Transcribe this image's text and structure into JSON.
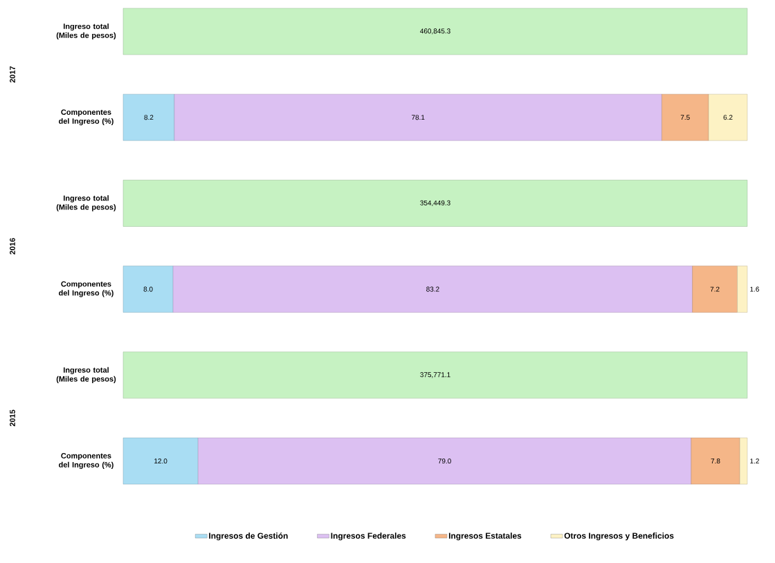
{
  "chart_data": {
    "type": "bar",
    "orientation": "horizontal",
    "stacked": true,
    "categories": [
      "Ingreso total (Miles de pesos)",
      "Componentes del Ingreso (%)",
      "Ingreso total (Miles de pesos)",
      "Componentes del Ingreso (%)",
      "Ingreso total (Miles de pesos)",
      "Componentes del Ingreso (%)"
    ],
    "xlim": [
      0,
      100
    ],
    "tick_labels": "y",
    "legend": "bottom",
    "annotations": [
      "2017",
      "460,845.3",
      "2016",
      "354,449.3",
      "2015",
      "375,771.1"
    ],
    "series": [
      {
        "color": "#c6f2c2",
        "values": [
          100,
          null,
          100,
          null,
          100,
          null
        ]
      },
      {
        "name": "Ingresos de Gestión",
        "color": "#a9ddf3",
        "values": [
          null,
          8.2,
          null,
          8.0,
          null,
          12.0
        ],
        "value_labels": [
          null,
          "8.2",
          null,
          "8.0",
          null,
          "12.0"
        ]
      },
      {
        "name": "Ingresos Federales",
        "color": "#dcc0f2",
        "values": [
          null,
          78.1,
          null,
          83.2,
          null,
          79.0
        ],
        "value_labels": [
          null,
          "78.1",
          null,
          "83.2",
          null,
          "79.0"
        ]
      },
      {
        "name": "Ingresos Estatales",
        "color": "#f5b688",
        "values": [
          null,
          7.5,
          null,
          7.2,
          null,
          7.8
        ],
        "value_labels": [
          null,
          "7.5",
          null,
          "7.2",
          null,
          "7.8"
        ]
      },
      {
        "name": "Otros Ingresos y Beneficios",
        "color": "#fdf2c4",
        "values": [
          null,
          6.2,
          null,
          1.6,
          null,
          1.2
        ],
        "value_labels": [
          null,
          "6.2",
          null,
          "1.6",
          null,
          "1.2"
        ]
      }
    ]
  }
}
